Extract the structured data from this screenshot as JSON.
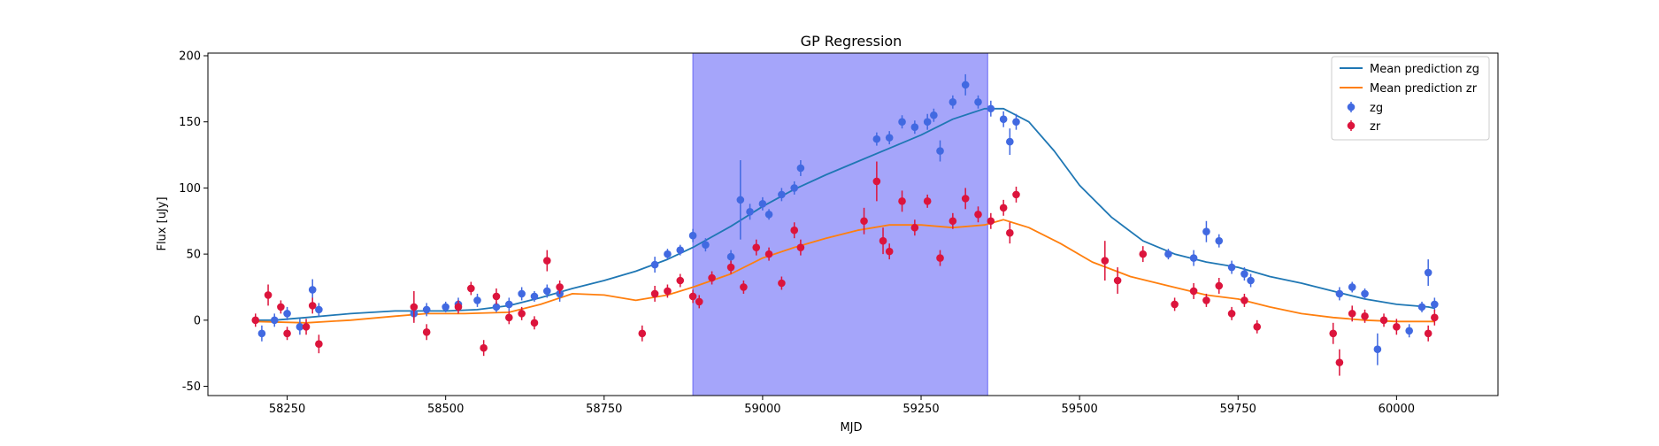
{
  "chart_data": {
    "type": "scatter",
    "title": "GP Regression",
    "xlabel": "MJD",
    "ylabel": "Flux [uJy]",
    "xlim": [
      58125,
      60160
    ],
    "ylim": [
      -57,
      202
    ],
    "xticks": [
      58250,
      58500,
      58750,
      59000,
      59250,
      59500,
      59750,
      60000
    ],
    "yticks": [
      -50,
      0,
      50,
      100,
      150,
      200
    ],
    "grid": false,
    "legend_position": "top-right",
    "highlight_span": {
      "x": [
        58890,
        59355
      ],
      "color": "#a5a5fa"
    },
    "lines": [
      {
        "name": "Mean prediction zg",
        "color": "#1f77b4",
        "points": [
          [
            58200,
            0
          ],
          [
            58230,
            0
          ],
          [
            58280,
            2
          ],
          [
            58350,
            5
          ],
          [
            58420,
            7
          ],
          [
            58470,
            7
          ],
          [
            58500,
            7
          ],
          [
            58550,
            8
          ],
          [
            58600,
            11
          ],
          [
            58650,
            17
          ],
          [
            58700,
            24
          ],
          [
            58750,
            30
          ],
          [
            58800,
            37
          ],
          [
            58850,
            46
          ],
          [
            58890,
            55
          ],
          [
            58950,
            71
          ],
          [
            59000,
            86
          ],
          [
            59050,
            99
          ],
          [
            59100,
            110
          ],
          [
            59150,
            120
          ],
          [
            59200,
            130
          ],
          [
            59250,
            140
          ],
          [
            59300,
            152
          ],
          [
            59350,
            160
          ],
          [
            59380,
            160
          ],
          [
            59420,
            150
          ],
          [
            59460,
            128
          ],
          [
            59500,
            102
          ],
          [
            59550,
            78
          ],
          [
            59600,
            60
          ],
          [
            59650,
            50
          ],
          [
            59700,
            44
          ],
          [
            59750,
            40
          ],
          [
            59800,
            33
          ],
          [
            59850,
            28
          ],
          [
            59900,
            22
          ],
          [
            59950,
            16
          ],
          [
            60000,
            12
          ],
          [
            60050,
            10
          ],
          [
            60060,
            9
          ]
        ]
      },
      {
        "name": "Mean prediction zr",
        "color": "#ff7f0e",
        "points": [
          [
            58200,
            -1
          ],
          [
            58280,
            -2
          ],
          [
            58350,
            0
          ],
          [
            58420,
            3
          ],
          [
            58470,
            5
          ],
          [
            58530,
            5
          ],
          [
            58600,
            6
          ],
          [
            58650,
            12
          ],
          [
            58700,
            20
          ],
          [
            58750,
            19
          ],
          [
            58800,
            15
          ],
          [
            58850,
            19
          ],
          [
            58890,
            25
          ],
          [
            58950,
            35
          ],
          [
            59000,
            47
          ],
          [
            59050,
            55
          ],
          [
            59100,
            62
          ],
          [
            59150,
            68
          ],
          [
            59200,
            72
          ],
          [
            59250,
            72
          ],
          [
            59300,
            70
          ],
          [
            59350,
            72
          ],
          [
            59380,
            76
          ],
          [
            59420,
            70
          ],
          [
            59470,
            58
          ],
          [
            59520,
            44
          ],
          [
            59580,
            33
          ],
          [
            59640,
            26
          ],
          [
            59700,
            19
          ],
          [
            59750,
            16
          ],
          [
            59800,
            10
          ],
          [
            59850,
            5
          ],
          [
            59900,
            2
          ],
          [
            59950,
            0
          ],
          [
            60000,
            -1
          ],
          [
            60060,
            -1
          ]
        ]
      }
    ],
    "series": [
      {
        "name": "zg",
        "color": "#4169e1",
        "points": [
          [
            58210,
            -10,
            6
          ],
          [
            58230,
            0,
            5
          ],
          [
            58250,
            5,
            5
          ],
          [
            58270,
            -5,
            6
          ],
          [
            58290,
            23,
            8
          ],
          [
            58300,
            8,
            5
          ],
          [
            58450,
            5,
            5
          ],
          [
            58470,
            8,
            5
          ],
          [
            58500,
            10,
            4
          ],
          [
            58520,
            12,
            5
          ],
          [
            58550,
            15,
            5
          ],
          [
            58580,
            10,
            4
          ],
          [
            58600,
            12,
            5
          ],
          [
            58620,
            20,
            5
          ],
          [
            58640,
            18,
            4
          ],
          [
            58660,
            22,
            5
          ],
          [
            58680,
            20,
            6
          ],
          [
            58830,
            42,
            6
          ],
          [
            58850,
            50,
            4
          ],
          [
            58870,
            53,
            4
          ],
          [
            58890,
            64,
            5
          ],
          [
            58910,
            57,
            5
          ],
          [
            58950,
            48,
            5
          ],
          [
            58965,
            91,
            30
          ],
          [
            58980,
            82,
            6
          ],
          [
            59000,
            88,
            5
          ],
          [
            59010,
            80,
            4
          ],
          [
            59030,
            95,
            5
          ],
          [
            59050,
            100,
            5
          ],
          [
            59060,
            115,
            6
          ],
          [
            59180,
            137,
            5
          ],
          [
            59200,
            138,
            5
          ],
          [
            59220,
            150,
            5
          ],
          [
            59240,
            146,
            5
          ],
          [
            59260,
            150,
            6
          ],
          [
            59270,
            155,
            5
          ],
          [
            59280,
            128,
            8
          ],
          [
            59300,
            165,
            5
          ],
          [
            59320,
            178,
            8
          ],
          [
            59340,
            165,
            5
          ],
          [
            59360,
            160,
            6
          ],
          [
            59380,
            152,
            6
          ],
          [
            59390,
            135,
            10
          ],
          [
            59400,
            150,
            6
          ],
          [
            59640,
            50,
            4
          ],
          [
            59680,
            47,
            6
          ],
          [
            59700,
            67,
            8
          ],
          [
            59720,
            60,
            5
          ],
          [
            59740,
            40,
            5
          ],
          [
            59760,
            35,
            5
          ],
          [
            59770,
            30,
            5
          ],
          [
            59910,
            20,
            5
          ],
          [
            59930,
            25,
            4
          ],
          [
            59950,
            20,
            4
          ],
          [
            59970,
            -22,
            12
          ],
          [
            60020,
            -8,
            5
          ],
          [
            60040,
            10,
            4
          ],
          [
            60050,
            36,
            10
          ],
          [
            60060,
            12,
            5
          ]
        ]
      },
      {
        "name": "zr",
        "color": "#dc143c",
        "points": [
          [
            58200,
            0,
            5
          ],
          [
            58220,
            19,
            8
          ],
          [
            58240,
            10,
            5
          ],
          [
            58250,
            -10,
            5
          ],
          [
            58280,
            -5,
            6
          ],
          [
            58290,
            11,
            6
          ],
          [
            58300,
            -18,
            7
          ],
          [
            58450,
            10,
            12
          ],
          [
            58470,
            -9,
            6
          ],
          [
            58520,
            10,
            5
          ],
          [
            58540,
            24,
            5
          ],
          [
            58560,
            -21,
            6
          ],
          [
            58580,
            18,
            6
          ],
          [
            58600,
            2,
            5
          ],
          [
            58620,
            5,
            5
          ],
          [
            58640,
            -2,
            5
          ],
          [
            58660,
            45,
            8
          ],
          [
            58680,
            25,
            5
          ],
          [
            58810,
            -10,
            6
          ],
          [
            58830,
            20,
            6
          ],
          [
            58850,
            22,
            5
          ],
          [
            58870,
            30,
            5
          ],
          [
            58890,
            18,
            5
          ],
          [
            58900,
            14,
            5
          ],
          [
            58920,
            32,
            5
          ],
          [
            58950,
            40,
            5
          ],
          [
            58970,
            25,
            5
          ],
          [
            58990,
            55,
            6
          ],
          [
            59010,
            50,
            5
          ],
          [
            59030,
            28,
            5
          ],
          [
            59050,
            68,
            6
          ],
          [
            59060,
            55,
            6
          ],
          [
            59160,
            75,
            10
          ],
          [
            59180,
            105,
            15
          ],
          [
            59190,
            60,
            10
          ],
          [
            59200,
            52,
            6
          ],
          [
            59220,
            90,
            8
          ],
          [
            59240,
            70,
            6
          ],
          [
            59260,
            90,
            5
          ],
          [
            59280,
            47,
            6
          ],
          [
            59300,
            75,
            6
          ],
          [
            59320,
            92,
            8
          ],
          [
            59340,
            80,
            6
          ],
          [
            59360,
            75,
            6
          ],
          [
            59380,
            85,
            6
          ],
          [
            59390,
            66,
            8
          ],
          [
            59400,
            95,
            6
          ],
          [
            59540,
            45,
            15
          ],
          [
            59560,
            30,
            10
          ],
          [
            59600,
            50,
            6
          ],
          [
            59650,
            12,
            5
          ],
          [
            59680,
            22,
            6
          ],
          [
            59700,
            15,
            5
          ],
          [
            59720,
            26,
            6
          ],
          [
            59740,
            5,
            5
          ],
          [
            59760,
            15,
            5
          ],
          [
            59780,
            -5,
            5
          ],
          [
            59900,
            -10,
            8
          ],
          [
            59910,
            -32,
            10
          ],
          [
            59930,
            5,
            6
          ],
          [
            59950,
            3,
            5
          ],
          [
            59980,
            0,
            5
          ],
          [
            60000,
            -5,
            6
          ],
          [
            60050,
            -10,
            6
          ],
          [
            60060,
            2,
            6
          ]
        ]
      }
    ]
  }
}
